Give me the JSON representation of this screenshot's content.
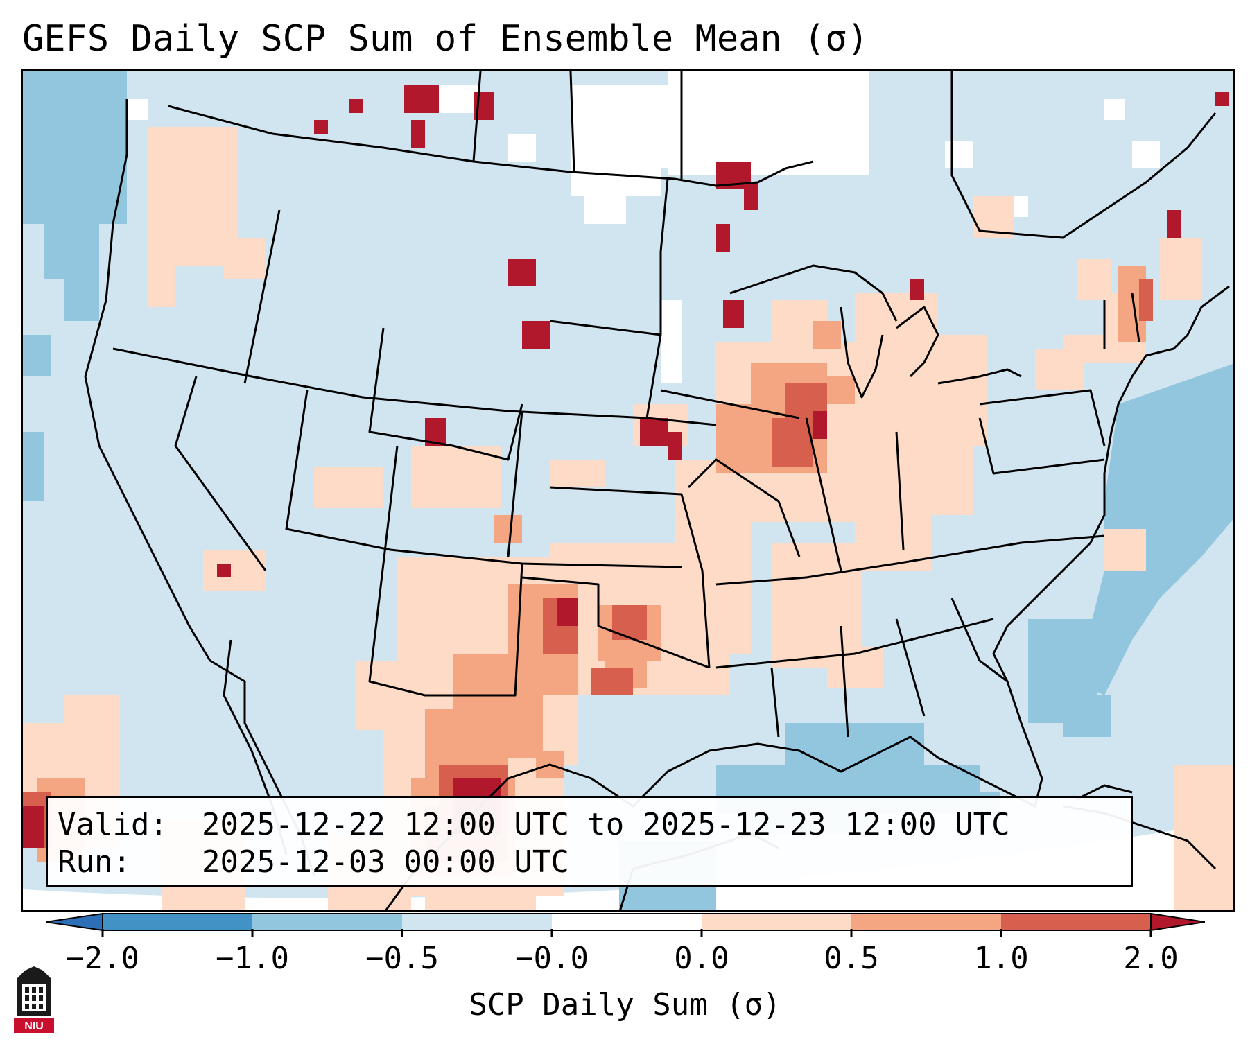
{
  "title": "GEFS Daily SCP Sum of Ensemble Mean (σ)",
  "info": {
    "valid_label": "Valid:",
    "valid_value": "2025-12-22 12:00 UTC to 2025-12-23 12:00 UTC",
    "run_label": "Run:",
    "run_value": "2025-12-03 00:00 UTC"
  },
  "colorbar": {
    "label": "SCP Daily Sum (σ)",
    "ticks": [
      "−2.0",
      "−1.0",
      "−0.5",
      "−0.0",
      "0.0",
      "0.5",
      "1.0",
      "2.0"
    ],
    "bins": [
      {
        "range": "< -2.0",
        "color": "#2c6fb7"
      },
      {
        "range": "-2.0 to -1.0",
        "color": "#4292c6"
      },
      {
        "range": "-1.0 to -0.5",
        "color": "#92c5de"
      },
      {
        "range": "-0.5 to -0.0",
        "color": "#d1e5f0"
      },
      {
        "range": "-0.0 to 0.0",
        "color": "#ffffff"
      },
      {
        "range": "0.0 to 0.5",
        "color": "#fddbc7"
      },
      {
        "range": "0.5 to 1.0",
        "color": "#f4a582"
      },
      {
        "range": "1.0 to 2.0",
        "color": "#d6604d"
      },
      {
        "range": "> 2.0",
        "color": "#b2182b"
      }
    ]
  },
  "logo_text": "NIU",
  "colors": {
    "background_field": "#d1e5f0",
    "light_positive": "#fddbc7",
    "mid_positive": "#f4a582",
    "high_positive": "#d6604d",
    "max_positive": "#b2182b",
    "light_negative": "#92c5de",
    "logo_red": "#c8102e"
  }
}
